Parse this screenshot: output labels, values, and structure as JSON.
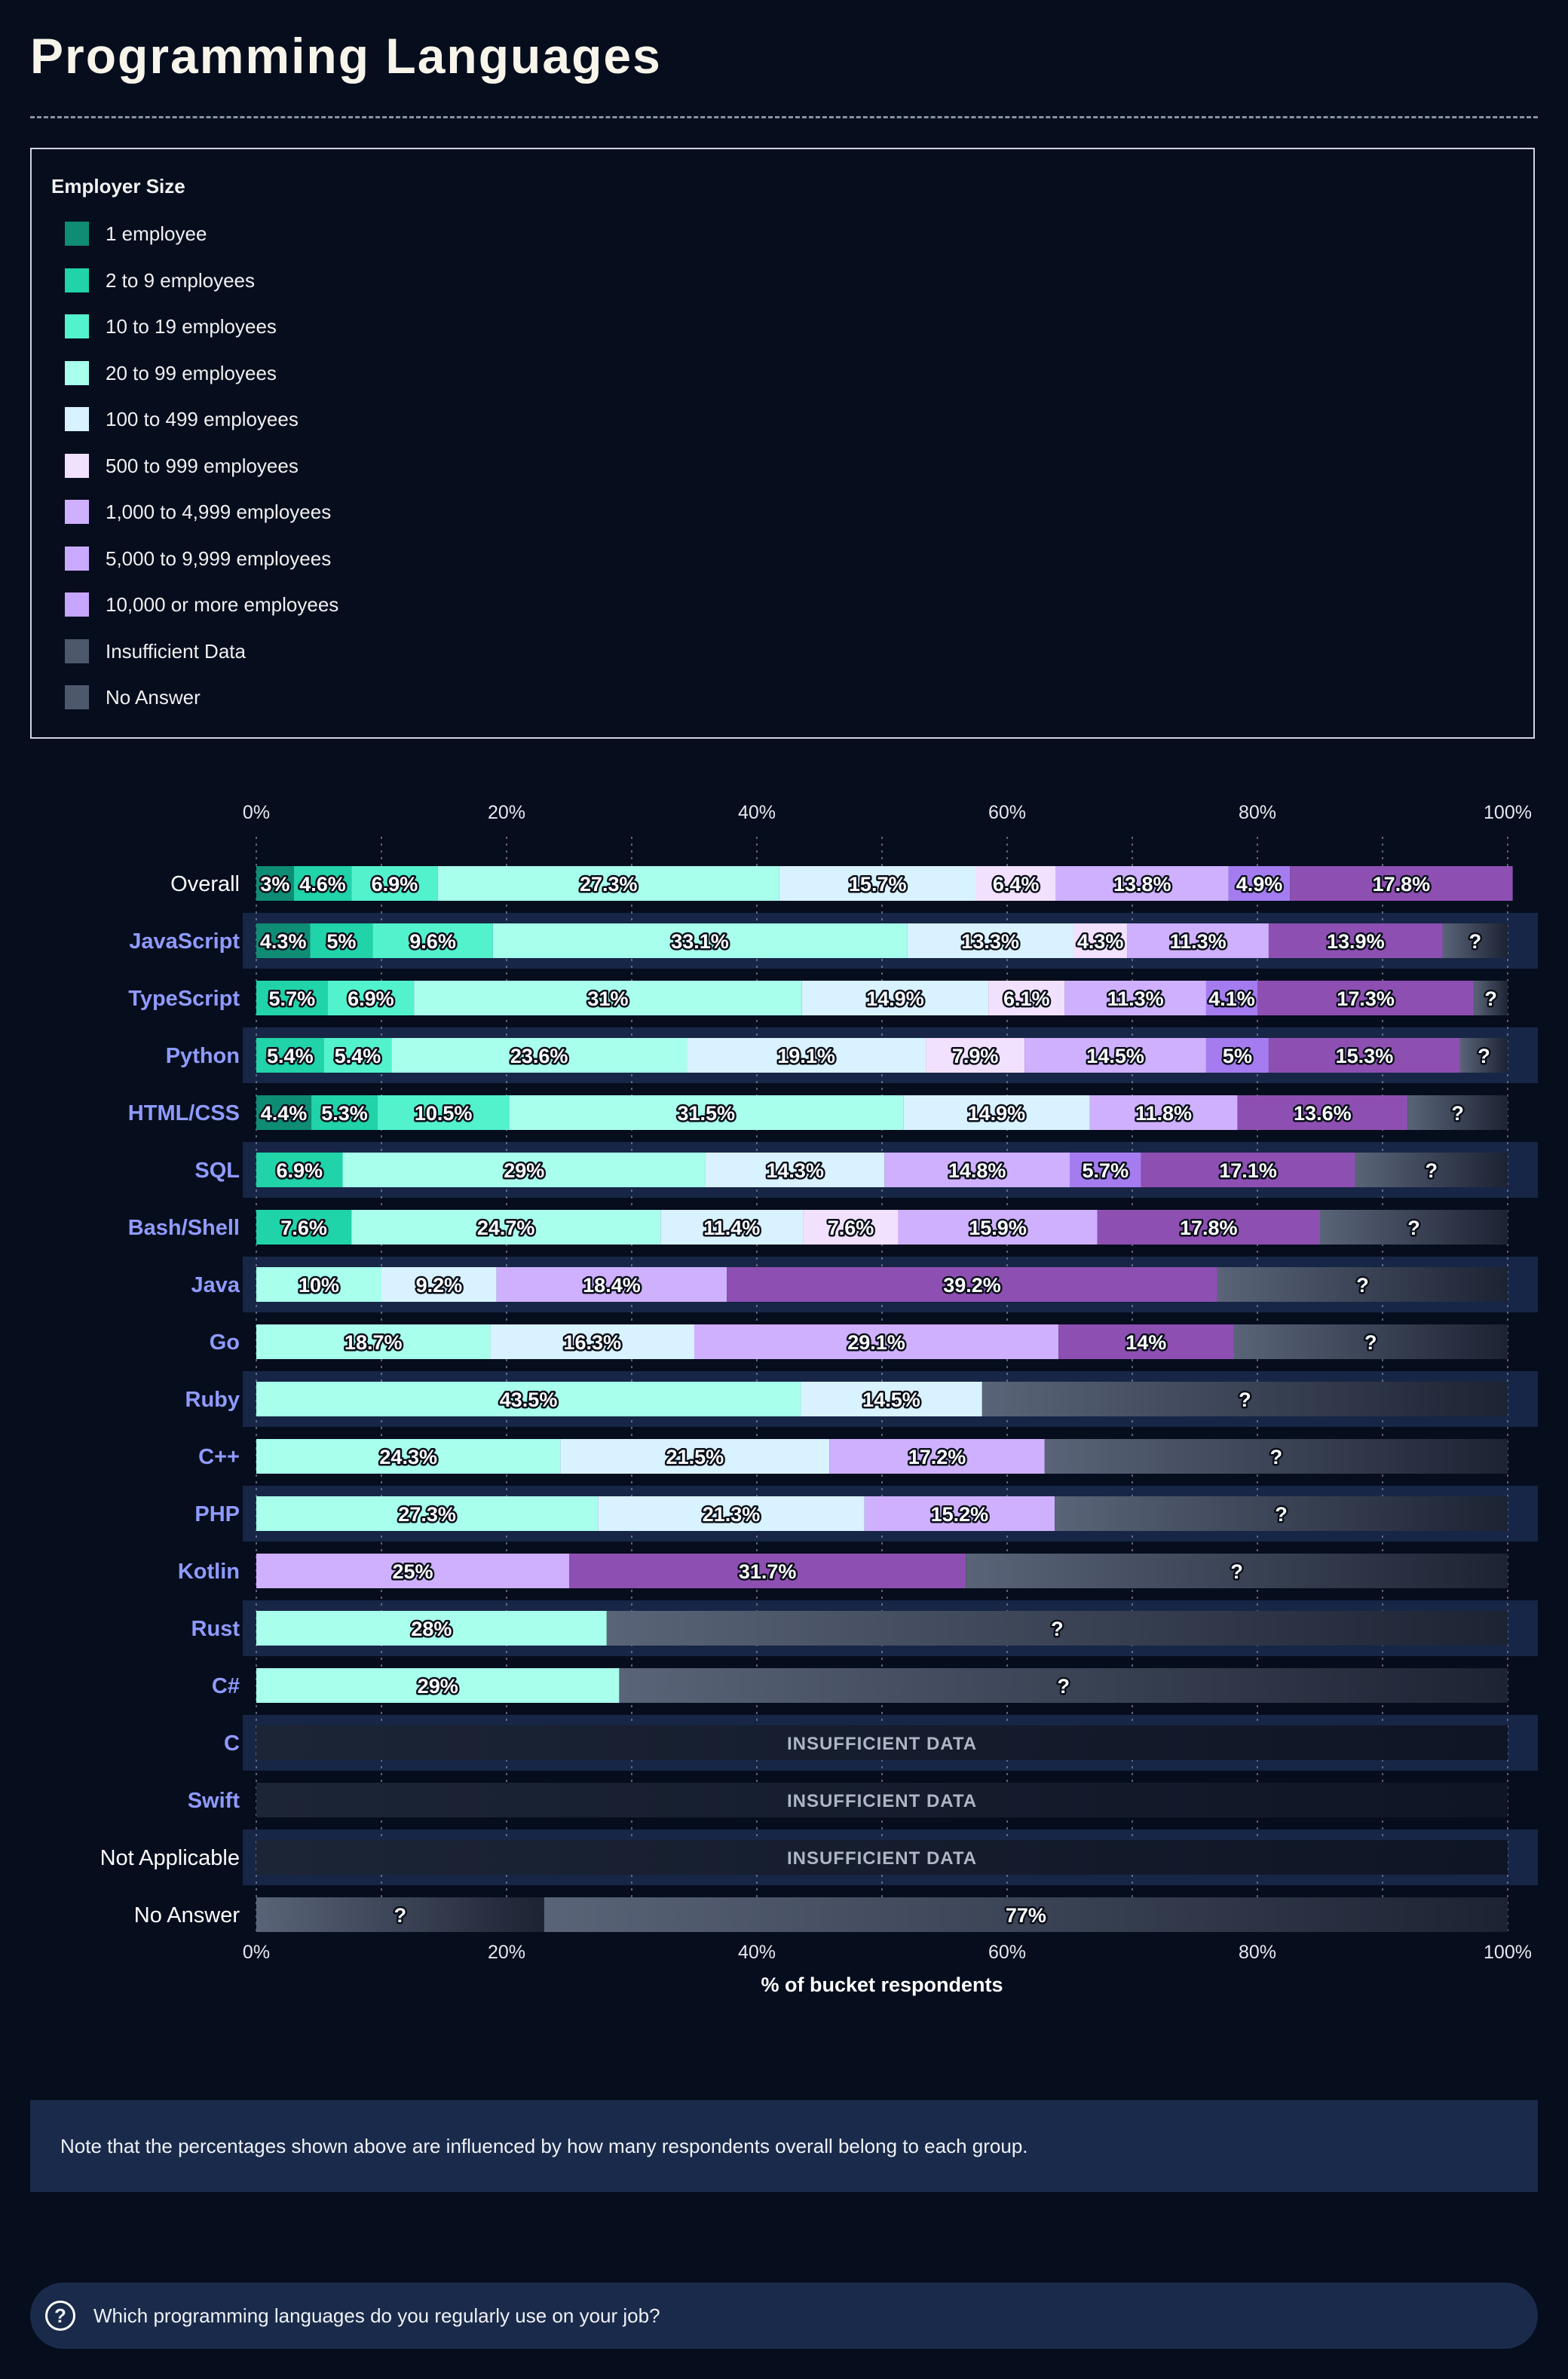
{
  "title": "Programming Languages",
  "legend": {
    "title": "Employer Size",
    "items": [
      {
        "label": "1 employee",
        "color": "#0e8c74"
      },
      {
        "label": "2 to 9 employees",
        "color": "#20d3a8"
      },
      {
        "label": "10 to 19 employees",
        "color": "#52f2cd"
      },
      {
        "label": "20 to 99 employees",
        "color": "#a8ffec"
      },
      {
        "label": "100 to 499 employees",
        "color": "#d8f2ff"
      },
      {
        "label": "500 to 999 employees",
        "color": "#f2e0ff"
      },
      {
        "label": "1,000 to 4,999 employees",
        "color": "#cfb0ff"
      },
      {
        "label": "5,000 to 9,999 employees",
        "color": "#c9aaff"
      },
      {
        "label": "10,000 or more employees",
        "color": "#c7a6ff"
      },
      {
        "label": "Insufficient Data",
        "color": "#4d586c"
      },
      {
        "label": "No Answer",
        "color": "#4d586c"
      }
    ]
  },
  "chart_data": {
    "type": "bar",
    "orientation": "horizontal",
    "stacked": true,
    "xlabel": "% of bucket respondents",
    "xlim": [
      0,
      100
    ],
    "xticks": [
      "0%",
      "20%",
      "40%",
      "60%",
      "80%",
      "100%"
    ],
    "series_colors": {
      "1 employee": "#0e8c74",
      "2 to 9 employees": "#20d3a8",
      "10 to 19 employees": "#52f2cd",
      "20 to 99 employees": "#a8ffec",
      "100 to 499 employees": "#d8f2ff",
      "500 to 999 employees": "#f2e0ff",
      "1,000 to 4,999 employees": "#cfb0ff",
      "5,000 to 9,999 employees": "#a57cf0",
      "10,000 or more employees": "#8e4fb2",
      "Insufficient Data": "#4d586c",
      "No Answer": "#4d586c"
    },
    "insufficient_label": "INSUFFICIENT DATA",
    "rows": [
      {
        "label": "Overall",
        "highlight": false,
        "segments": [
          {
            "series": "1 employee",
            "value": 3,
            "label": "3%"
          },
          {
            "series": "2 to 9 employees",
            "value": 4.6,
            "label": "4.6%"
          },
          {
            "series": "10 to 19 employees",
            "value": 6.9,
            "label": "6.9%"
          },
          {
            "series": "20 to 99 employees",
            "value": 27.3,
            "label": "27.3%"
          },
          {
            "series": "100 to 499 employees",
            "value": 15.7,
            "label": "15.7%"
          },
          {
            "series": "500 to 999 employees",
            "value": 6.4,
            "label": "6.4%"
          },
          {
            "series": "1,000 to 4,999 employees",
            "value": 13.8,
            "label": "13.8%"
          },
          {
            "series": "5,000 to 9,999 employees",
            "value": 4.9,
            "label": "4.9%"
          },
          {
            "series": "10,000 or more employees",
            "value": 17.8,
            "label": "17.8%"
          }
        ]
      },
      {
        "label": "JavaScript",
        "highlight": true,
        "segments": [
          {
            "series": "1 employee",
            "value": 4.3,
            "label": "4.3%"
          },
          {
            "series": "2 to 9 employees",
            "value": 5,
            "label": "5%"
          },
          {
            "series": "10 to 19 employees",
            "value": 9.6,
            "label": "9.6%"
          },
          {
            "series": "20 to 99 employees",
            "value": 33.1,
            "label": "33.1%"
          },
          {
            "series": "100 to 499 employees",
            "value": 13.3,
            "label": "13.3%"
          },
          {
            "series": "500 to 999 employees",
            "value": 4.3,
            "label": "4.3%"
          },
          {
            "series": "1,000 to 4,999 employees",
            "value": 11.3,
            "label": "11.3%"
          },
          {
            "series": "10,000 or more employees",
            "value": 13.9,
            "label": "13.9%"
          },
          {
            "series": "Insufficient Data",
            "value": 5.2,
            "label": "?"
          }
        ]
      },
      {
        "label": "TypeScript",
        "highlight": true,
        "segments": [
          {
            "series": "2 to 9 employees",
            "value": 5.7,
            "label": "5.7%"
          },
          {
            "series": "10 to 19 employees",
            "value": 6.9,
            "label": "6.9%"
          },
          {
            "series": "20 to 99 employees",
            "value": 31,
            "label": "31%"
          },
          {
            "series": "100 to 499 employees",
            "value": 14.9,
            "label": "14.9%"
          },
          {
            "series": "500 to 999 employees",
            "value": 6.1,
            "label": "6.1%"
          },
          {
            "series": "1,000 to 4,999 employees",
            "value": 11.3,
            "label": "11.3%"
          },
          {
            "series": "5,000 to 9,999 employees",
            "value": 4.1,
            "label": "4.1%"
          },
          {
            "series": "10,000 or more employees",
            "value": 17.3,
            "label": "17.3%"
          },
          {
            "series": "Insufficient Data",
            "value": 2.7,
            "label": "?"
          }
        ]
      },
      {
        "label": "Python",
        "highlight": true,
        "segments": [
          {
            "series": "2 to 9 employees",
            "value": 5.4,
            "label": "5.4%"
          },
          {
            "series": "10 to 19 employees",
            "value": 5.4,
            "label": "5.4%"
          },
          {
            "series": "20 to 99 employees",
            "value": 23.6,
            "label": "23.6%"
          },
          {
            "series": "100 to 499 employees",
            "value": 19.1,
            "label": "19.1%"
          },
          {
            "series": "500 to 999 employees",
            "value": 7.9,
            "label": "7.9%"
          },
          {
            "series": "1,000 to 4,999 employees",
            "value": 14.5,
            "label": "14.5%"
          },
          {
            "series": "5,000 to 9,999 employees",
            "value": 5,
            "label": "5%"
          },
          {
            "series": "10,000 or more employees",
            "value": 15.3,
            "label": "15.3%"
          },
          {
            "series": "Insufficient Data",
            "value": 3.8,
            "label": "?"
          }
        ]
      },
      {
        "label": "HTML/CSS",
        "highlight": true,
        "segments": [
          {
            "series": "1 employee",
            "value": 4.4,
            "label": "4.4%"
          },
          {
            "series": "2 to 9 employees",
            "value": 5.3,
            "label": "5.3%"
          },
          {
            "series": "10 to 19 employees",
            "value": 10.5,
            "label": "10.5%"
          },
          {
            "series": "20 to 99 employees",
            "value": 31.5,
            "label": "31.5%"
          },
          {
            "series": "100 to 499 employees",
            "value": 14.9,
            "label": "14.9%"
          },
          {
            "series": "1,000 to 4,999 employees",
            "value": 11.8,
            "label": "11.8%"
          },
          {
            "series": "10,000 or more employees",
            "value": 13.6,
            "label": "13.6%"
          },
          {
            "series": "Insufficient Data",
            "value": 8,
            "label": "?"
          }
        ]
      },
      {
        "label": "SQL",
        "highlight": true,
        "segments": [
          {
            "series": "2 to 9 employees",
            "value": 6.9,
            "label": "6.9%"
          },
          {
            "series": "20 to 99 employees",
            "value": 29,
            "label": "29%"
          },
          {
            "series": "100 to 499 employees",
            "value": 14.3,
            "label": "14.3%"
          },
          {
            "series": "1,000 to 4,999 employees",
            "value": 14.8,
            "label": "14.8%"
          },
          {
            "series": "5,000 to 9,999 employees",
            "value": 5.7,
            "label": "5.7%"
          },
          {
            "series": "10,000 or more employees",
            "value": 17.1,
            "label": "17.1%"
          },
          {
            "series": "Insufficient Data",
            "value": 12.2,
            "label": "?"
          }
        ]
      },
      {
        "label": "Bash/Shell",
        "highlight": true,
        "segments": [
          {
            "series": "2 to 9 employees",
            "value": 7.6,
            "label": "7.6%"
          },
          {
            "series": "20 to 99 employees",
            "value": 24.7,
            "label": "24.7%"
          },
          {
            "series": "100 to 499 employees",
            "value": 11.4,
            "label": "11.4%"
          },
          {
            "series": "500 to 999 employees",
            "value": 7.6,
            "label": "7.6%"
          },
          {
            "series": "1,000 to 4,999 employees",
            "value": 15.9,
            "label": "15.9%"
          },
          {
            "series": "10,000 or more employees",
            "value": 17.8,
            "label": "17.8%"
          },
          {
            "series": "Insufficient Data",
            "value": 15,
            "label": "?"
          }
        ]
      },
      {
        "label": "Java",
        "highlight": true,
        "segments": [
          {
            "series": "20 to 99 employees",
            "value": 10,
            "label": "10%"
          },
          {
            "series": "100 to 499 employees",
            "value": 9.2,
            "label": "9.2%"
          },
          {
            "series": "1,000 to 4,999 employees",
            "value": 18.4,
            "label": "18.4%"
          },
          {
            "series": "10,000 or more employees",
            "value": 39.2,
            "label": "39.2%"
          },
          {
            "series": "Insufficient Data",
            "value": 23.2,
            "label": "?"
          }
        ]
      },
      {
        "label": "Go",
        "highlight": true,
        "segments": [
          {
            "series": "20 to 99 employees",
            "value": 18.7,
            "label": "18.7%"
          },
          {
            "series": "100 to 499 employees",
            "value": 16.3,
            "label": "16.3%"
          },
          {
            "series": "1,000 to 4,999 employees",
            "value": 29.1,
            "label": "29.1%"
          },
          {
            "series": "10,000 or more employees",
            "value": 14,
            "label": "14%"
          },
          {
            "series": "Insufficient Data",
            "value": 21.9,
            "label": "?"
          }
        ]
      },
      {
        "label": "Ruby",
        "highlight": true,
        "segments": [
          {
            "series": "20 to 99 employees",
            "value": 43.5,
            "label": "43.5%"
          },
          {
            "series": "100 to 499 employees",
            "value": 14.5,
            "label": "14.5%"
          },
          {
            "series": "Insufficient Data",
            "value": 42,
            "label": "?"
          }
        ]
      },
      {
        "label": "C++",
        "highlight": true,
        "segments": [
          {
            "series": "20 to 99 employees",
            "value": 24.3,
            "label": "24.3%"
          },
          {
            "series": "100 to 499 employees",
            "value": 21.5,
            "label": "21.5%"
          },
          {
            "series": "1,000 to 4,999 employees",
            "value": 17.2,
            "label": "17.2%"
          },
          {
            "series": "Insufficient Data",
            "value": 37,
            "label": "?"
          }
        ]
      },
      {
        "label": "PHP",
        "highlight": true,
        "segments": [
          {
            "series": "20 to 99 employees",
            "value": 27.3,
            "label": "27.3%"
          },
          {
            "series": "100 to 499 employees",
            "value": 21.3,
            "label": "21.3%"
          },
          {
            "series": "1,000 to 4,999 employees",
            "value": 15.2,
            "label": "15.2%"
          },
          {
            "series": "Insufficient Data",
            "value": 36.2,
            "label": "?"
          }
        ]
      },
      {
        "label": "Kotlin",
        "highlight": true,
        "segments": [
          {
            "series": "1,000 to 4,999 employees",
            "value": 25,
            "label": "25%"
          },
          {
            "series": "10,000 or more employees",
            "value": 31.7,
            "label": "31.7%"
          },
          {
            "series": "Insufficient Data",
            "value": 43.3,
            "label": "?"
          }
        ]
      },
      {
        "label": "Rust",
        "highlight": true,
        "segments": [
          {
            "series": "20 to 99 employees",
            "value": 28,
            "label": "28%"
          },
          {
            "series": "Insufficient Data",
            "value": 72,
            "label": "?"
          }
        ]
      },
      {
        "label": "C#",
        "highlight": true,
        "segments": [
          {
            "series": "20 to 99 employees",
            "value": 29,
            "label": "29%"
          },
          {
            "series": "Insufficient Data",
            "value": 71,
            "label": "?"
          }
        ]
      },
      {
        "label": "C",
        "highlight": true,
        "insufficient": true,
        "segments": []
      },
      {
        "label": "Swift",
        "highlight": true,
        "insufficient": true,
        "segments": []
      },
      {
        "label": "Not Applicable",
        "highlight": false,
        "insufficient": true,
        "segments": []
      },
      {
        "label": "No Answer",
        "highlight": false,
        "segments": [
          {
            "series": "Insufficient Data",
            "value": 23,
            "label": "?"
          },
          {
            "series": "No Answer",
            "value": 77,
            "label": "77%"
          }
        ]
      }
    ]
  },
  "note": "Note that the percentages shown above are influenced by how many respondents overall belong to each group.",
  "question": {
    "icon": "question-circle-icon",
    "text": "Which programming languages do you regularly use on your job?"
  }
}
